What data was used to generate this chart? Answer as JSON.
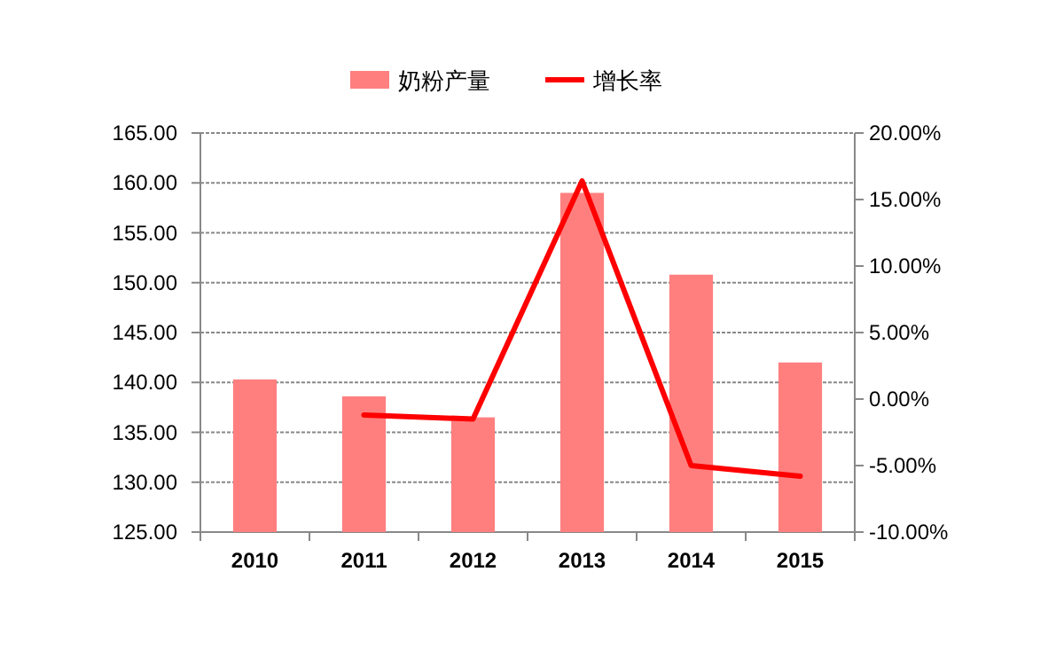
{
  "chart_data": {
    "type": "bar",
    "categories": [
      "2010",
      "2011",
      "2012",
      "2013",
      "2014",
      "2015"
    ],
    "series": [
      {
        "name": "奶粉产量",
        "color": "#ff7f7f",
        "values": [
          140.3,
          138.6,
          136.5,
          159.0,
          150.8,
          142.0
        ]
      },
      {
        "name": "增长率",
        "type": "line",
        "axis": "y2",
        "color": "#ff0000",
        "values": [
          null,
          -1.2,
          -1.5,
          16.4,
          -5.0,
          -5.8
        ]
      }
    ],
    "ylim": [
      125,
      165
    ],
    "yticks": [
      {
        "value": 125,
        "label": "125.00"
      },
      {
        "value": 130,
        "label": "130.00"
      },
      {
        "value": 135,
        "label": "135.00"
      },
      {
        "value": 140,
        "label": "140.00"
      },
      {
        "value": 145,
        "label": "145.00"
      },
      {
        "value": 150,
        "label": "150.00"
      },
      {
        "value": 155,
        "label": "155.00"
      },
      {
        "value": 160,
        "label": "160.00"
      },
      {
        "value": 165,
        "label": "165.00"
      }
    ],
    "y2lim": [
      -10,
      20
    ],
    "y2ticks": [
      {
        "value": -10,
        "label": "-10.00%"
      },
      {
        "value": -5,
        "label": "-5.00%"
      },
      {
        "value": 0,
        "label": "0.00%"
      },
      {
        "value": 5,
        "label": "5.00%"
      },
      {
        "value": 10,
        "label": "10.00%"
      },
      {
        "value": 15,
        "label": "15.00%"
      },
      {
        "value": 20,
        "label": "20.00%"
      }
    ],
    "grid": "y",
    "legend": "top"
  }
}
